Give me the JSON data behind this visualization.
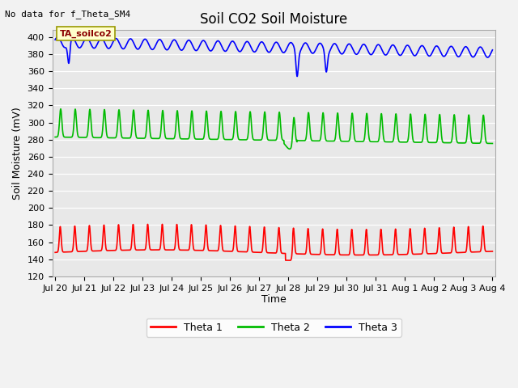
{
  "title": "Soil CO2 Soil Moisture",
  "top_left_text": "No data for f_Theta_SM4",
  "annotation_box_text": "TA_soilco2",
  "xlabel": "Time",
  "ylabel": "Soil Moisture (mV)",
  "ylim": [
    120,
    408
  ],
  "yticks": [
    120,
    140,
    160,
    180,
    200,
    220,
    240,
    260,
    280,
    300,
    320,
    340,
    360,
    380,
    400
  ],
  "background_color": "#e8e8e8",
  "fig_background": "#f2f2f2",
  "legend_labels": [
    "Theta 1",
    "Theta 2",
    "Theta 3"
  ],
  "legend_colors": [
    "#ff0000",
    "#00bb00",
    "#0000ff"
  ],
  "line_colors": [
    "#ff0000",
    "#00bb00",
    "#0000ff"
  ],
  "line_width": 1.2,
  "x_labels": [
    "Jul 20",
    "Jul 21",
    "Jul 22",
    "Jul 23",
    "Jul 24",
    "Jul 25",
    "Jul 26",
    "Jul 27",
    "Jul 28",
    "Jul 29",
    "Jul 30",
    "Jul 31",
    "Aug 1",
    "Aug 2",
    "Aug 3",
    "Aug 4"
  ],
  "title_fontsize": 12,
  "axis_label_fontsize": 9,
  "tick_fontsize": 8
}
